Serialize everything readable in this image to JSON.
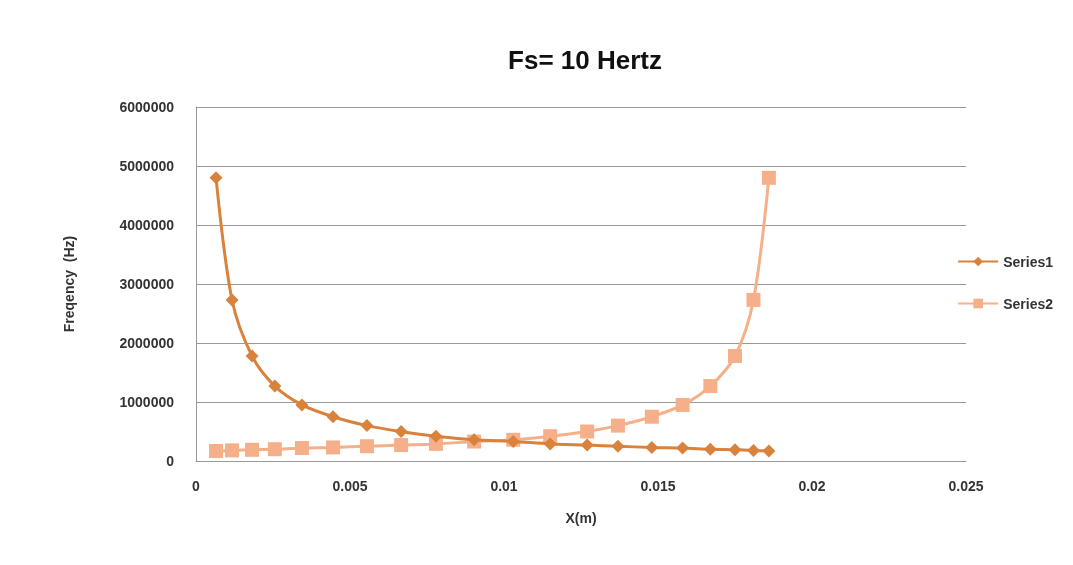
{
  "chart_data": {
    "type": "line",
    "title": "Fs= 10 Hertz",
    "xlabel": "X(m)",
    "ylabel": "Freqency  (Hz)",
    "xlim": [
      0,
      0.025
    ],
    "xticks": [
      0,
      0.005,
      0.01,
      0.015,
      0.02,
      0.025
    ],
    "ylim": [
      0,
      6000000
    ],
    "yticks": [
      0,
      1000000,
      2000000,
      3000000,
      4000000,
      5000000,
      6000000
    ],
    "grid": "y",
    "legend": "right",
    "line_style": "solid",
    "series": [
      {
        "name": "Series1",
        "color": "#d9823b",
        "marker": "diamond",
        "x": [
          0.00065,
          0.00117,
          0.00182,
          0.00256,
          0.00344,
          0.00445,
          0.00555,
          0.00666,
          0.00779,
          0.00903,
          0.0103,
          0.0115,
          0.0127,
          0.0137,
          0.0148,
          0.0158,
          0.0167,
          0.0175,
          0.0181,
          0.0186
        ],
        "values": [
          4800000,
          2730000,
          1780000,
          1270000,
          950000,
          750000,
          600000,
          500000,
          420000,
          360000,
          330000,
          290000,
          270000,
          250000,
          230000,
          220000,
          200000,
          190000,
          180000,
          170000
        ]
      },
      {
        "name": "Series2",
        "color": "#f5b08a",
        "marker": "square",
        "x": [
          0.00065,
          0.00117,
          0.00182,
          0.00256,
          0.00344,
          0.00445,
          0.00555,
          0.00666,
          0.00779,
          0.00903,
          0.0103,
          0.0115,
          0.0127,
          0.0137,
          0.0148,
          0.0158,
          0.0167,
          0.0175,
          0.0181,
          0.0186
        ],
        "values": [
          170000,
          180000,
          190000,
          200000,
          220000,
          230000,
          250000,
          270000,
          290000,
          330000,
          360000,
          420000,
          500000,
          600000,
          750000,
          950000,
          1270000,
          1780000,
          2730000,
          4800000
        ]
      }
    ]
  }
}
